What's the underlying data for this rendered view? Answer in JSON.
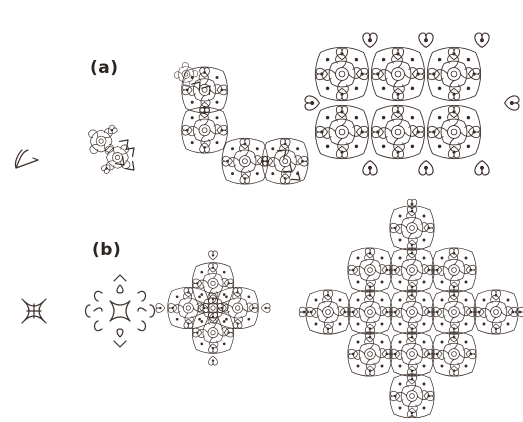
{
  "figure": {
    "row_a": {
      "label": "(a)",
      "stages": [
        "stage-1",
        "stage-2",
        "stage-3",
        "stage-4"
      ]
    },
    "row_b": {
      "label": "(b)",
      "stages": [
        "stage-1",
        "stage-2",
        "stage-3",
        "stage-4"
      ]
    },
    "colors": {
      "ink": "#3a2d2a",
      "background": "#ffffff"
    }
  }
}
